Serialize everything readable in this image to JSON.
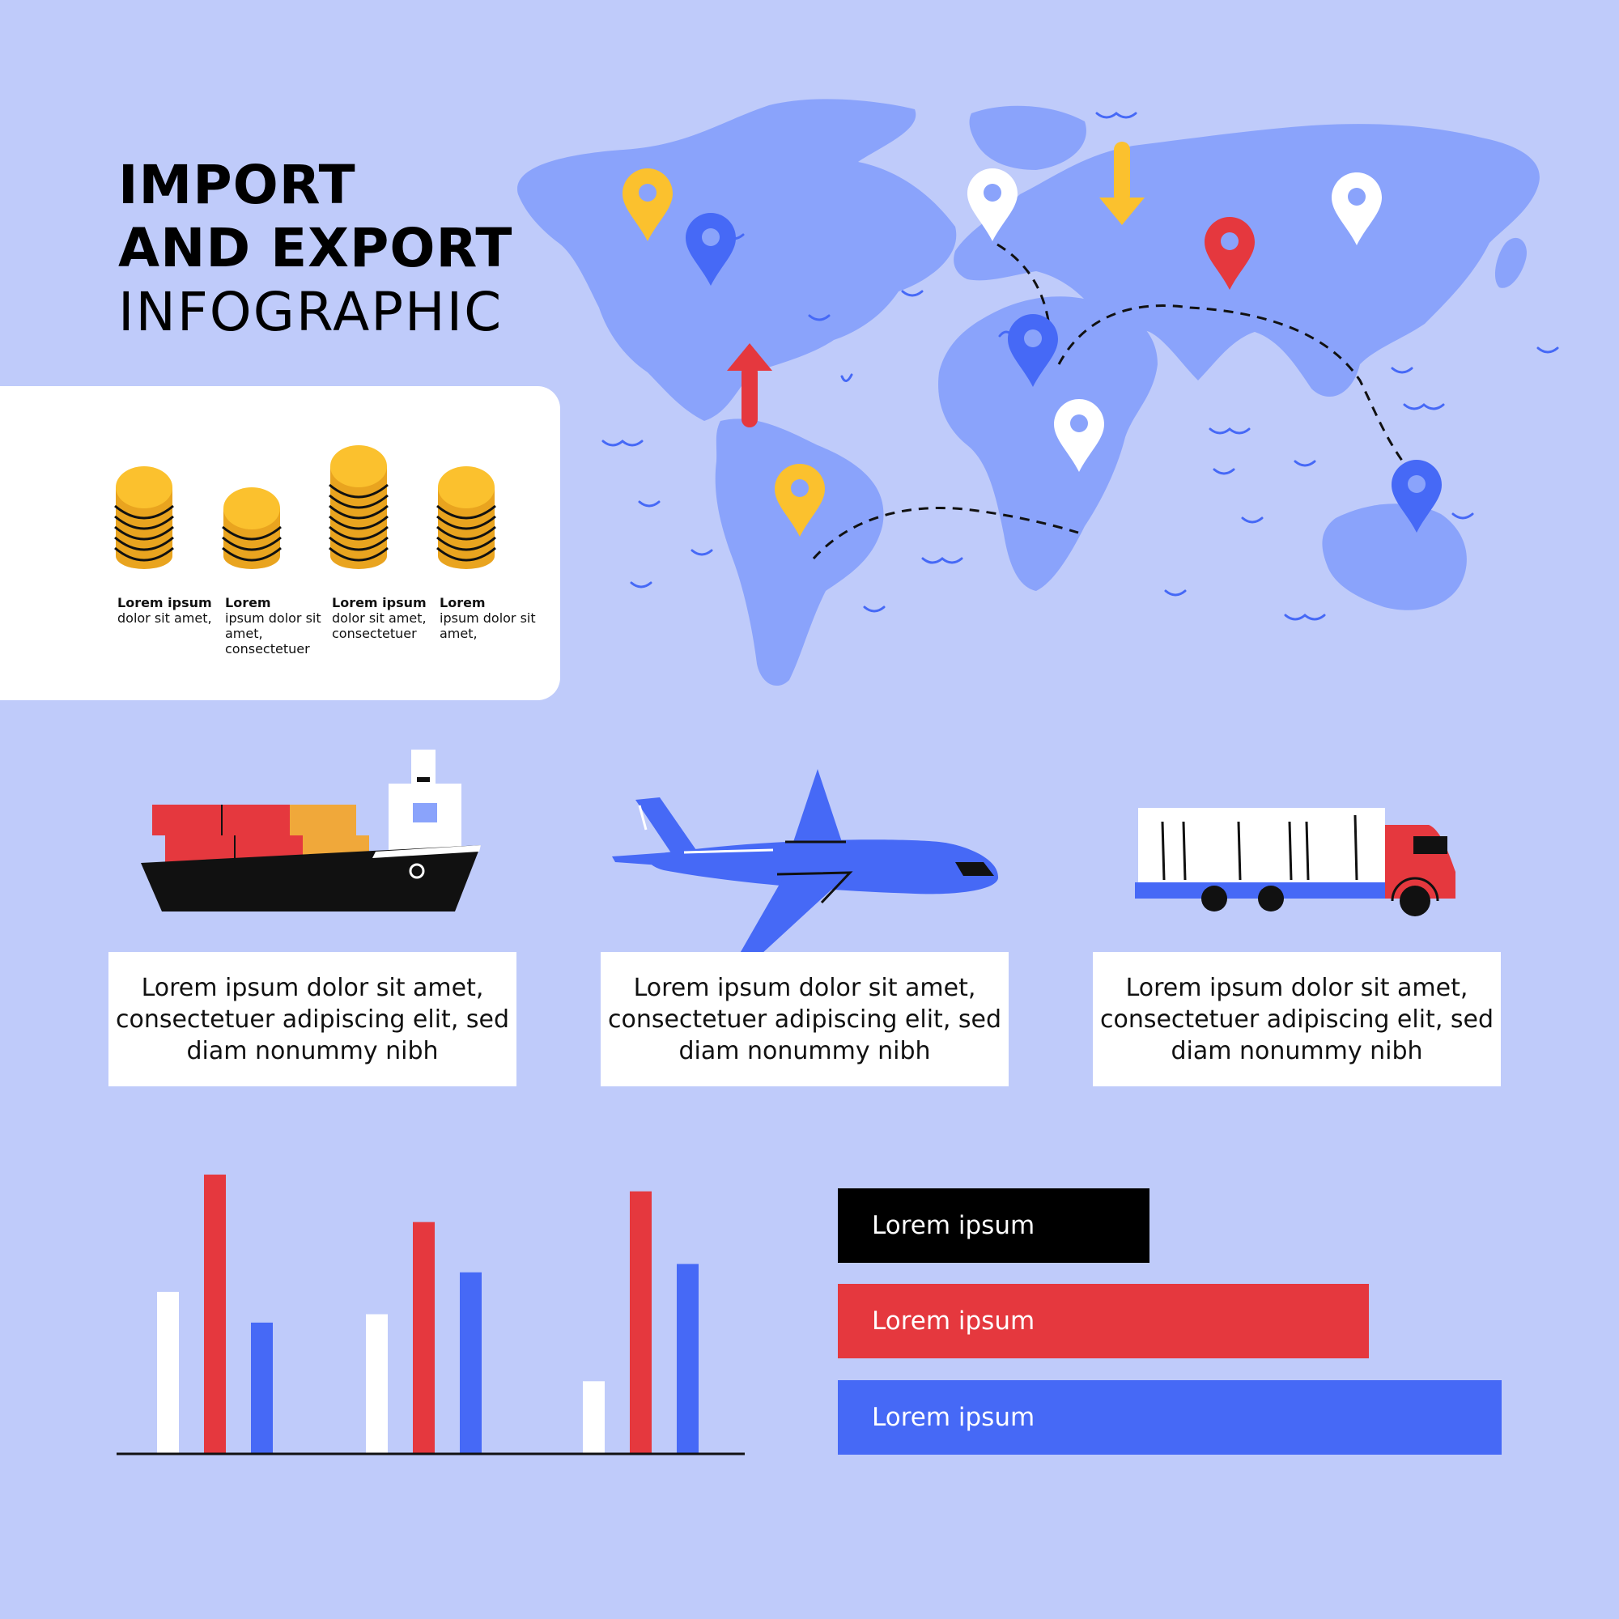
{
  "title": {
    "line1": "IMPORT",
    "line2": "AND EXPORT",
    "line3": "INFOGRAPHIC"
  },
  "coins": [
    {
      "bold": "Lorem ipsum",
      "text": "dolor sit amet,",
      "stack": 5
    },
    {
      "bold": "Lorem",
      "text": "ipsum dolor sit amet, consectetuer",
      "stack": 3
    },
    {
      "bold": "Lorem ipsum",
      "text": "dolor sit amet, consectetuer",
      "stack": 7
    },
    {
      "bold": "Lorem",
      "text": "ipsum dolor sit amet,",
      "stack": 5
    }
  ],
  "transport": [
    {
      "icon": "cargo-ship-icon",
      "text": "Lorem ipsum dolor sit amet, consectetuer adipiscing elit, sed diam nonummy nibh"
    },
    {
      "icon": "airplane-icon",
      "text": "Lorem ipsum dolor sit amet, consectetuer adipiscing elit, sed diam nonummy nibh"
    },
    {
      "icon": "truck-icon",
      "text": "Lorem ipsum dolor sit amet, consectetuer adipiscing elit, sed diam nonummy nibh"
    }
  ],
  "legend_bars": [
    {
      "label": "Lorem ipsum",
      "color": "#000000",
      "value": 0.47
    },
    {
      "label": "Lorem ipsum",
      "color": "#e5383e",
      "value": 0.8
    },
    {
      "label": "Lorem ipsum",
      "color": "#4669f6",
      "value": 1.0
    }
  ],
  "colors": {
    "background": "#bfcbfa",
    "map": "#8aa3fb",
    "white": "#ffffff",
    "red": "#e5383e",
    "blue": "#4669f6",
    "yellow": "#fbc12e",
    "black": "#000000"
  },
  "chart_data": {
    "type": "bar",
    "categories": [
      "",
      "",
      ""
    ],
    "ylim": [
      0,
      100
    ],
    "series": [
      {
        "color": "#ffffff",
        "values": [
          58,
          50,
          26
        ]
      },
      {
        "color": "#e5383e",
        "values": [
          100,
          83,
          94
        ]
      },
      {
        "color": "#4669f6",
        "values": [
          47,
          65,
          68
        ]
      }
    ],
    "grid": false
  }
}
